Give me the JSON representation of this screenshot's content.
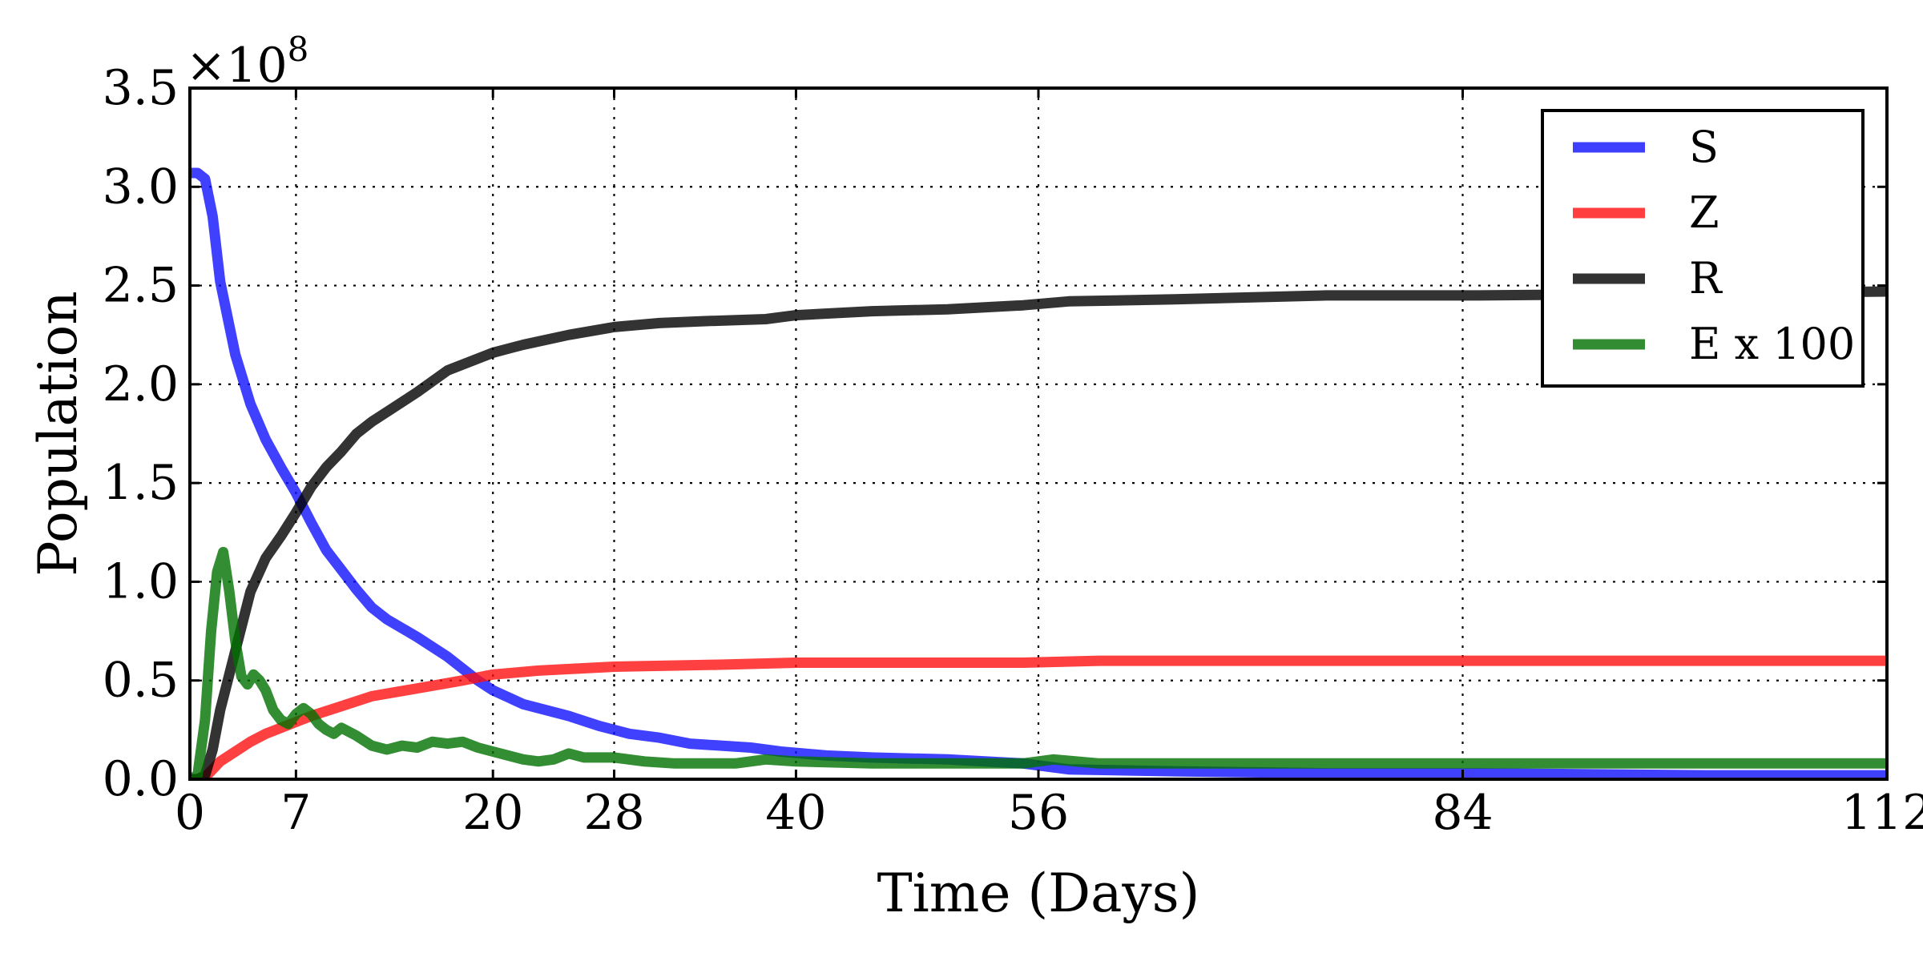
{
  "chart_data": {
    "type": "line",
    "xlabel": "Time (Days)",
    "ylabel": "Population",
    "y_multiplier_label": "×10",
    "y_multiplier_exponent": "8",
    "xlim": [
      0,
      112
    ],
    "ylim": [
      0,
      3.5
    ],
    "x_ticks": [
      0,
      7,
      20,
      28,
      40,
      56,
      84,
      112
    ],
    "x_tick_labels": [
      "0",
      "7",
      "20",
      "28",
      "40",
      "56",
      "84",
      "112"
    ],
    "y_ticks": [
      0,
      0.5,
      1.0,
      1.5,
      2.0,
      2.5,
      3.0,
      3.5
    ],
    "y_tick_labels": [
      "0.0",
      "0.5",
      "1.0",
      "1.5",
      "2.0",
      "2.5",
      "3.0",
      "3.5"
    ],
    "grid": true,
    "legend_position": "top-right",
    "series": [
      {
        "name": "S",
        "color": "#1010ff",
        "x": [
          0,
          0.5,
          1,
          1.5,
          2,
          3,
          4,
          5,
          6,
          7,
          8,
          9,
          10,
          11,
          12,
          13,
          15,
          17,
          19,
          20,
          22,
          25,
          27,
          29,
          31,
          33,
          37,
          39,
          42,
          45,
          50,
          55,
          58,
          65,
          75,
          85,
          100,
          112
        ],
        "y": [
          3.07,
          3.07,
          3.04,
          2.85,
          2.52,
          2.15,
          1.9,
          1.72,
          1.58,
          1.45,
          1.3,
          1.16,
          1.06,
          0.96,
          0.87,
          0.81,
          0.72,
          0.62,
          0.5,
          0.45,
          0.38,
          0.32,
          0.27,
          0.23,
          0.21,
          0.18,
          0.16,
          0.14,
          0.12,
          0.11,
          0.1,
          0.08,
          0.05,
          0.04,
          0.03,
          0.03,
          0.02,
          0.02
        ]
      },
      {
        "name": "Z",
        "color": "#ff1010",
        "x": [
          0,
          0.5,
          1,
          1.5,
          2,
          3,
          4,
          5,
          7,
          8,
          10,
          12,
          15,
          18,
          20,
          23,
          28,
          35,
          40,
          45,
          55,
          60,
          70,
          85,
          112
        ],
        "y": [
          0,
          0,
          0.01,
          0.05,
          0.09,
          0.14,
          0.19,
          0.23,
          0.29,
          0.32,
          0.37,
          0.42,
          0.46,
          0.5,
          0.53,
          0.55,
          0.57,
          0.58,
          0.59,
          0.59,
          0.59,
          0.6,
          0.6,
          0.6,
          0.6
        ]
      },
      {
        "name": "R",
        "color": "#000000",
        "x": [
          0,
          0.5,
          1,
          1.5,
          2,
          3,
          4,
          5,
          6,
          7,
          8,
          9,
          10,
          11,
          12,
          13,
          15,
          17,
          19,
          20,
          22,
          25,
          28,
          31,
          34,
          38,
          40,
          45,
          50,
          55,
          58,
          65,
          75,
          85,
          100,
          112
        ],
        "y": [
          0,
          0,
          0.02,
          0.15,
          0.35,
          0.65,
          0.95,
          1.12,
          1.23,
          1.35,
          1.48,
          1.58,
          1.66,
          1.75,
          1.81,
          1.86,
          1.96,
          2.07,
          2.13,
          2.16,
          2.2,
          2.25,
          2.29,
          2.31,
          2.32,
          2.33,
          2.35,
          2.37,
          2.38,
          2.4,
          2.42,
          2.43,
          2.45,
          2.45,
          2.46,
          2.47
        ]
      },
      {
        "name": "E x 100",
        "color": "#007000",
        "x": [
          0,
          0.5,
          1,
          1.4,
          1.8,
          2.2,
          2.6,
          3.0,
          3.4,
          3.8,
          4.2,
          4.6,
          5.0,
          5.5,
          6.0,
          6.5,
          7.0,
          7.5,
          8.0,
          8.5,
          9.0,
          9.5,
          10.0,
          11.0,
          12.0,
          13.0,
          14.0,
          15.0,
          16.0,
          17.0,
          18.0,
          19.0,
          20.0,
          21.0,
          22.0,
          23.0,
          24.0,
          25.0,
          26.0,
          28.0,
          30.0,
          32.0,
          34.0,
          36.0,
          38.0,
          40.0,
          45.0,
          50.0,
          55.0,
          57.0,
          60.0,
          65.0,
          70.0,
          80.0,
          90.0,
          100.0,
          112.0
        ],
        "y": [
          0,
          0.02,
          0.3,
          0.75,
          1.05,
          1.15,
          0.95,
          0.7,
          0.52,
          0.48,
          0.53,
          0.5,
          0.45,
          0.35,
          0.3,
          0.28,
          0.33,
          0.36,
          0.33,
          0.28,
          0.25,
          0.23,
          0.26,
          0.22,
          0.17,
          0.15,
          0.17,
          0.16,
          0.19,
          0.18,
          0.19,
          0.16,
          0.14,
          0.12,
          0.1,
          0.09,
          0.1,
          0.13,
          0.11,
          0.11,
          0.09,
          0.08,
          0.08,
          0.08,
          0.1,
          0.09,
          0.08,
          0.08,
          0.08,
          0.1,
          0.08,
          0.08,
          0.08,
          0.08,
          0.08,
          0.08,
          0.08
        ]
      }
    ]
  }
}
